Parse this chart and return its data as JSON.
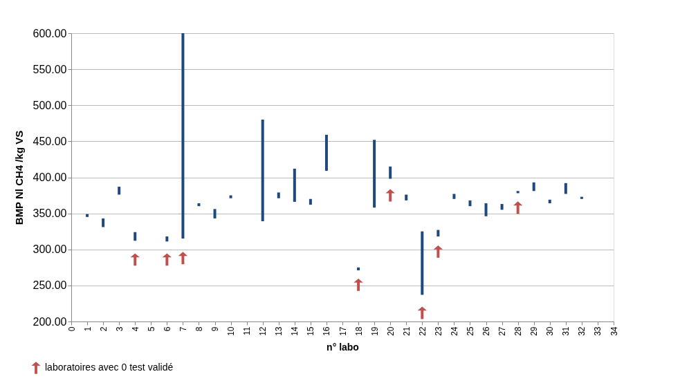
{
  "chart_data": {
    "type": "bar",
    "xlabel": "n° labo",
    "ylabel": "BMP Nl CH4 /kg VS",
    "x": [
      1,
      2,
      3,
      4,
      6,
      7,
      8,
      9,
      10,
      12,
      13,
      14,
      15,
      16,
      18,
      19,
      20,
      21,
      22,
      23,
      24,
      25,
      26,
      27,
      28,
      29,
      30,
      31,
      32
    ],
    "series": [
      {
        "color": "#1f497d",
        "base": [
          345,
          331,
          376,
          312,
          311,
          315,
          360,
          343,
          371,
          339,
          371,
          366,
          362,
          409,
          271,
          358,
          398,
          368,
          237,
          318,
          370,
          360,
          346,
          355,
          378,
          381,
          364,
          377,
          370
        ],
        "values": [
          4,
          12,
          11,
          12,
          7,
          285,
          4,
          13,
          4,
          141,
          8,
          46,
          8,
          50,
          4,
          94,
          17,
          8,
          88,
          9,
          7,
          8,
          18,
          8,
          3,
          12,
          5,
          15,
          3
        ]
      },
      {
        "type": "scatter",
        "name": "laboratoires avec 0 test validé",
        "color": "#c0504d",
        "marker": "triangle",
        "x": [
          4,
          6,
          7,
          18,
          20,
          22,
          23,
          28
        ],
        "values": [
          286,
          286,
          288,
          251,
          375,
          212,
          297,
          358
        ]
      }
    ],
    "xlim": [
      0,
      34
    ],
    "xticks": [
      0,
      1,
      2,
      3,
      4,
      5,
      6,
      7,
      8,
      9,
      10,
      11,
      12,
      13,
      14,
      15,
      16,
      17,
      18,
      19,
      20,
      21,
      22,
      23,
      24,
      25,
      26,
      27,
      28,
      29,
      30,
      31,
      32,
      33,
      34
    ],
    "ylim": [
      200,
      600
    ],
    "yticks": [
      {
        "value": 200,
        "label": "200.00"
      },
      {
        "value": 250,
        "label": "250.00"
      },
      {
        "value": 300,
        "label": "300.00"
      },
      {
        "value": 350,
        "label": "350.00"
      },
      {
        "value": 400,
        "label": "400.00"
      },
      {
        "value": 450,
        "label": "450.00"
      },
      {
        "value": 500,
        "label": "500.00"
      },
      {
        "value": 550,
        "label": "550.00"
      },
      {
        "value": 600,
        "label": "600.00"
      }
    ],
    "grid": "y",
    "legend": "bottom left"
  }
}
